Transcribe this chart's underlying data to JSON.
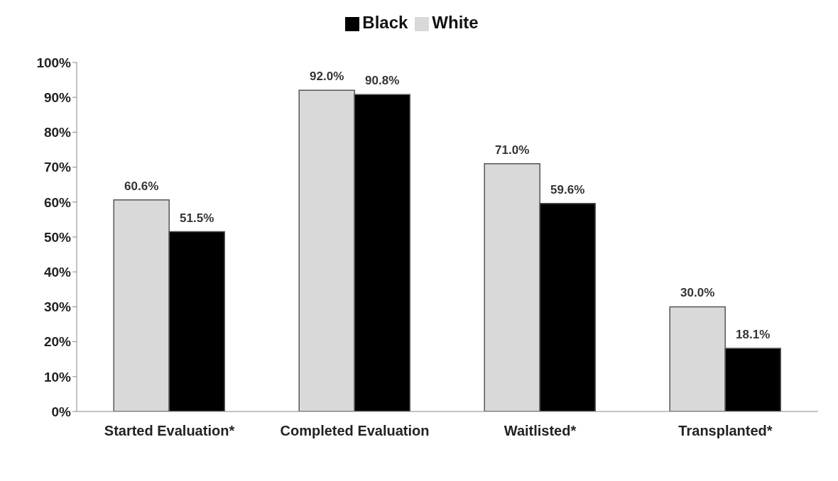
{
  "chart_data": {
    "type": "bar",
    "categories": [
      "Started Evaluation*",
      "Completed Evaluation",
      "Waitlisted*",
      "Transplanted*"
    ],
    "series": [
      {
        "name": "White",
        "color": "#d9d9d9",
        "values": [
          60.6,
          92.0,
          71.0,
          30.0
        ],
        "value_labels": [
          "60.6%",
          "92.0%",
          "71.0%",
          "30.0%"
        ]
      },
      {
        "name": "Black",
        "color": "#000000",
        "values": [
          51.5,
          90.8,
          59.6,
          18.1
        ],
        "value_labels": [
          "51.5%",
          "90.8%",
          "59.6%",
          "18.1%"
        ]
      }
    ],
    "ylim": [
      0,
      100
    ],
    "yticks": [
      {
        "value": 0,
        "label": "0%"
      },
      {
        "value": 10,
        "label": "10%"
      },
      {
        "value": 20,
        "label": "20%"
      },
      {
        "value": 30,
        "label": "30%"
      },
      {
        "value": 40,
        "label": "40%"
      },
      {
        "value": 50,
        "label": "50%"
      },
      {
        "value": 60,
        "label": "60%"
      },
      {
        "value": 70,
        "label": "70%"
      },
      {
        "value": 80,
        "label": "80%"
      },
      {
        "value": 90,
        "label": "90%"
      },
      {
        "value": 100,
        "label": "100%"
      }
    ],
    "grid": false,
    "legend": "top"
  }
}
